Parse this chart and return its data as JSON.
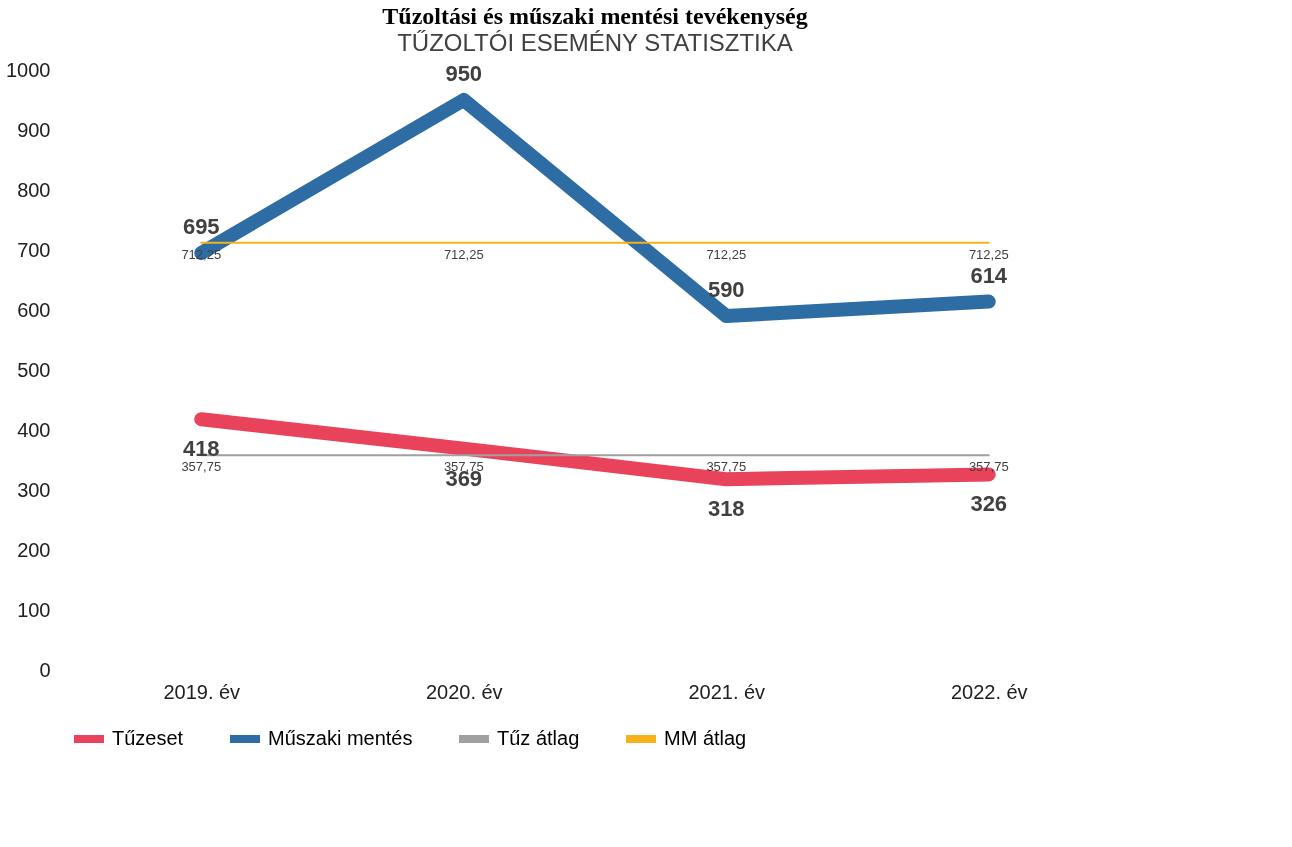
{
  "chart_data": {
    "type": "line",
    "title": "Tűzoltási és műszaki mentési tevékenység",
    "subtitle": "TŰZOLTÓI ESEMÉNY STATISZTIKA",
    "categories": [
      "2019. év",
      "2020. év",
      "2021. év",
      "2022. év"
    ],
    "series": [
      {
        "name": "Tűzeset",
        "color": "#e8435a",
        "values": [
          418,
          369,
          318,
          326
        ],
        "value_labels": [
          "418",
          "369",
          "318",
          "326"
        ]
      },
      {
        "name": "Műszaki mentés",
        "color": "#2e6da4",
        "values": [
          695,
          950,
          590,
          614
        ],
        "value_labels": [
          "695",
          "950",
          "590",
          "614"
        ]
      },
      {
        "name": "Tűz átlag",
        "color": "#a0a0a0",
        "values": [
          357.75,
          357.75,
          357.75,
          357.75
        ],
        "value_labels": [
          "357,75",
          "357,75",
          "357,75",
          "357,75"
        ]
      },
      {
        "name": "MM átlag",
        "color": "#f5b21b",
        "values": [
          712.25,
          712.25,
          712.25,
          712.25
        ],
        "value_labels": [
          "712,25",
          "712,25",
          "712,25",
          "712,25"
        ]
      }
    ],
    "ylim": [
      0,
      1000
    ],
    "yticks": [
      0,
      100,
      200,
      300,
      400,
      500,
      600,
      700,
      800,
      900,
      1000
    ],
    "grid": false,
    "legend": "bottom",
    "marker": "none",
    "line_style": "solid"
  }
}
